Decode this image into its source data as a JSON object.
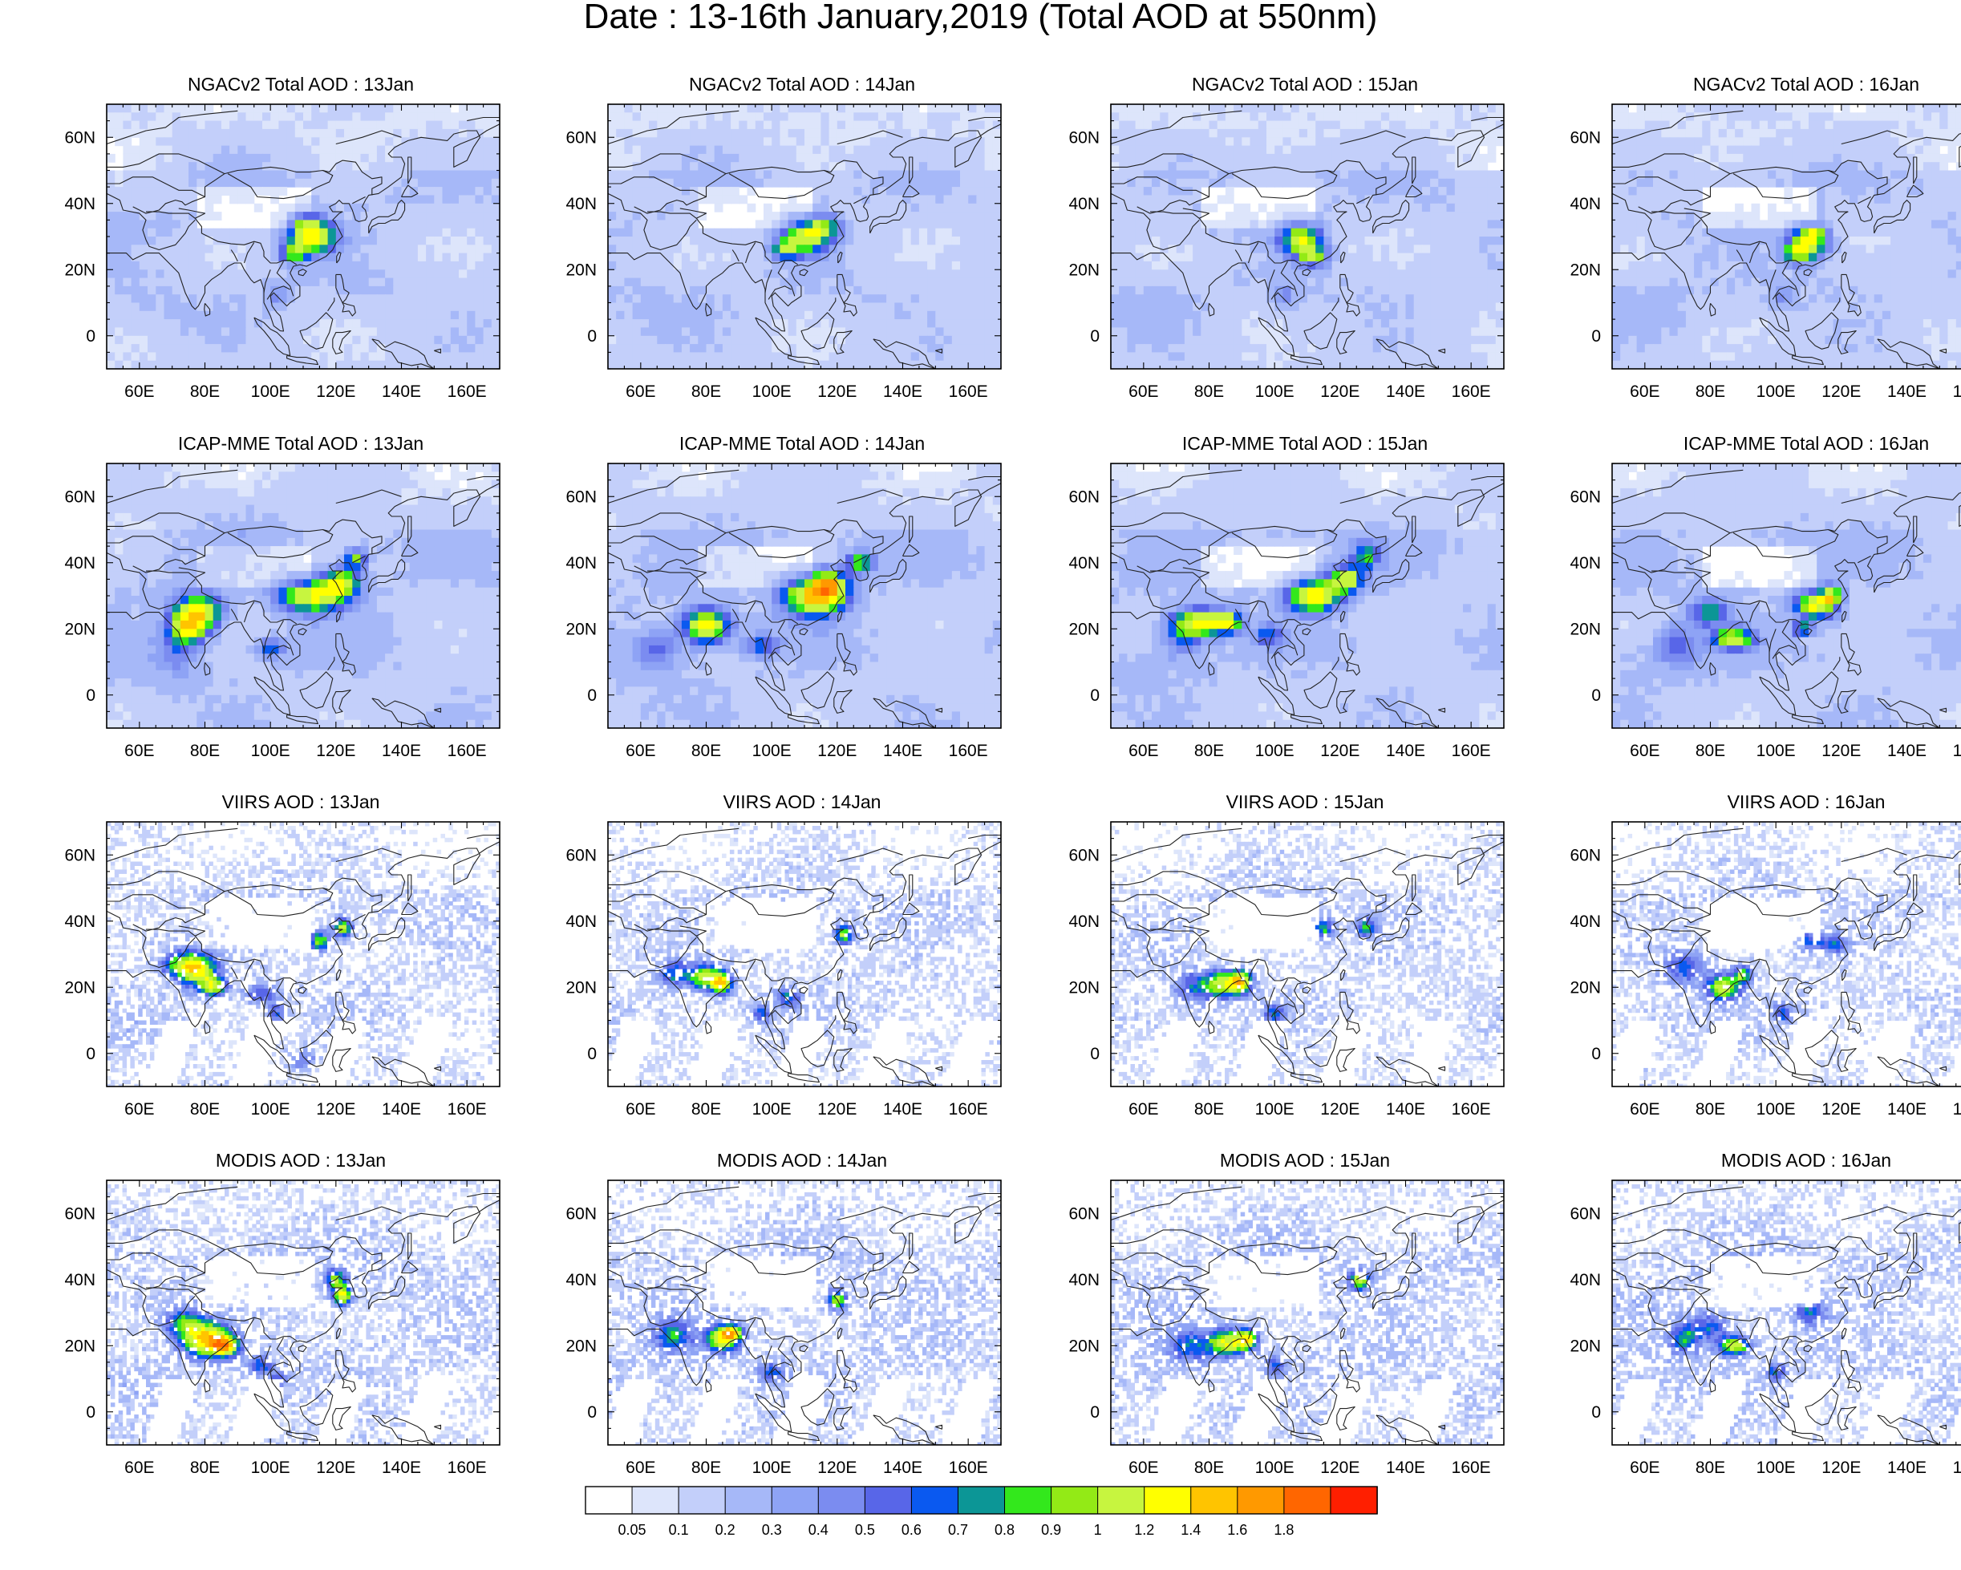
{
  "title": "Date : 13-16th January,2019 (Total AOD at 550nm)",
  "chart_data": {
    "type": "heatmap",
    "variable": "Total AOD at 550nm",
    "lon_range": [
      50,
      170
    ],
    "lat_range": [
      -10,
      70
    ],
    "xticks": [
      "60E",
      "80E",
      "100E",
      "120E",
      "140E",
      "160E"
    ],
    "xtick_values": [
      60,
      80,
      100,
      120,
      140,
      160
    ],
    "yticks": [
      "0",
      "20N",
      "40N",
      "60N"
    ],
    "ytick_values": [
      0,
      20,
      40,
      60
    ],
    "colorbar": {
      "levels": [
        "0.05",
        "0.1",
        "0.2",
        "0.3",
        "0.4",
        "0.5",
        "0.6",
        "0.7",
        "0.8",
        "0.9",
        "1",
        "1.2",
        "1.4",
        "1.6",
        "1.8"
      ],
      "colors": [
        "#ffffff",
        "#dde5fb",
        "#c3cffa",
        "#a6b8f8",
        "#8ea3f5",
        "#7b8cf0",
        "#5866e8",
        "#0a59f0",
        "#0c9696",
        "#33e81c",
        "#93ea16",
        "#c7f53f",
        "#ffff00",
        "#ffc400",
        "#ff9900",
        "#ff6600",
        "#ff1f00"
      ]
    },
    "panels": [
      {
        "title": "NGACv2 Total AOD : 13Jan",
        "row": 0,
        "col": 0
      },
      {
        "title": "NGACv2 Total AOD : 14Jan",
        "row": 0,
        "col": 1
      },
      {
        "title": "NGACv2 Total AOD : 15Jan",
        "row": 0,
        "col": 2
      },
      {
        "title": "NGACv2 Total AOD : 16Jan",
        "row": 0,
        "col": 3
      },
      {
        "title": "ICAP-MME Total AOD : 13Jan",
        "row": 1,
        "col": 0
      },
      {
        "title": "ICAP-MME Total AOD : 14Jan",
        "row": 1,
        "col": 1
      },
      {
        "title": "ICAP-MME Total AOD : 15Jan",
        "row": 1,
        "col": 2
      },
      {
        "title": "ICAP-MME Total AOD : 16Jan",
        "row": 1,
        "col": 3
      },
      {
        "title": "VIIRS AOD : 13Jan",
        "row": 2,
        "col": 0
      },
      {
        "title": "VIIRS AOD : 14Jan",
        "row": 2,
        "col": 1
      },
      {
        "title": "VIIRS AOD : 15Jan",
        "row": 2,
        "col": 2
      },
      {
        "title": "VIIRS AOD : 16Jan",
        "row": 2,
        "col": 3
      },
      {
        "title": "MODIS AOD : 13Jan",
        "row": 3,
        "col": 0
      },
      {
        "title": "MODIS AOD : 14Jan",
        "row": 3,
        "col": 1
      },
      {
        "title": "MODIS AOD : 15Jan",
        "row": 3,
        "col": 2
      },
      {
        "title": "MODIS AOD : 16Jan",
        "row": 3,
        "col": 3
      }
    ]
  }
}
